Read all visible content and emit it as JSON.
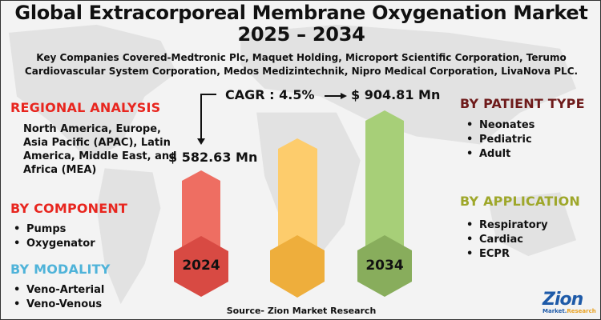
{
  "title": "Global Extracorporeal Membrane Oxygenation Market 2025 – 2034",
  "companies": "Key Companies Covered-Medtronic Plc, Maquet Holding, Microport Scientific Corporation, Terumo Cardiovascular System Corporation, Medos Medizintechnik, Nipro Medical Corporation, LivaNova PLC.",
  "regional": {
    "heading": "REGIONAL ANALYSIS",
    "text": "North America, Europe, Asia Pacific (APAC), Latin America, Middle East, and Africa (MEA)",
    "color": "#e8261f"
  },
  "component": {
    "heading": "BY COMPONENT",
    "items": [
      "Pumps",
      "Oxygenator"
    ],
    "color": "#e8261f"
  },
  "modality": {
    "heading": "BY MODALITY",
    "items": [
      "Veno-Arterial",
      "Veno-Venous"
    ],
    "color": "#4fb3d9"
  },
  "patient": {
    "heading": "BY PATIENT TYPE",
    "items": [
      "Neonates",
      "Pediatric",
      "Adult"
    ],
    "color": "#6e1a1a"
  },
  "application": {
    "heading": "BY APPLICATION",
    "items": [
      "Respiratory",
      "Cardiac",
      "ECPR"
    ],
    "color": "#9ea72a"
  },
  "cagr": "CAGR : 4.5%",
  "value_2024": "$ 582.63 Mn",
  "value_2034": "$ 904.81 Mn",
  "year_start": "2024",
  "year_end": "2034",
  "columns": {
    "red": "#ee6e62",
    "red_hex": "#d84a43",
    "yellow": "#fdcc6c",
    "yellow_hex": "#eeae3c",
    "green": "#a7cf78",
    "green_hex": "#88ad5c"
  },
  "source": "Source- Zion Market Research",
  "logo": {
    "main": "Zion",
    "sub1": "Market.",
    "sub2": "Research"
  }
}
